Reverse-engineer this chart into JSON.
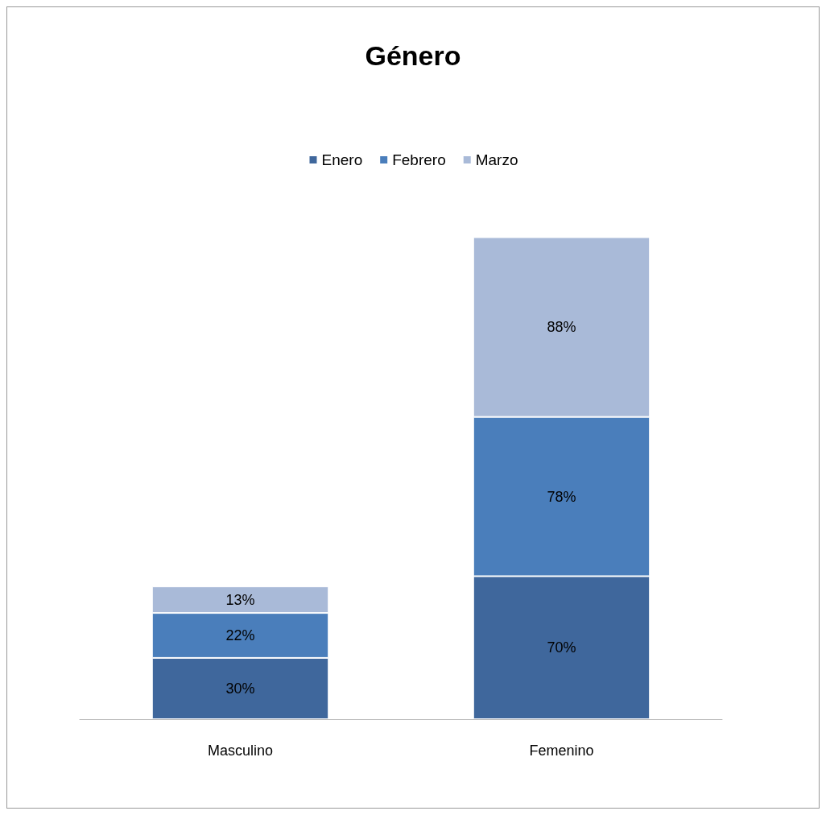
{
  "chart_data": {
    "type": "bar",
    "title": "Género",
    "categories": [
      "Masculino",
      "Femenino"
    ],
    "stacked": true,
    "legend": "top",
    "series": [
      {
        "name": "Enero",
        "color": "#3f679c",
        "values": [
          30,
          70
        ],
        "value_labels": [
          "30%",
          "70%"
        ]
      },
      {
        "name": "Febrero",
        "color": "#4a7ebb",
        "values": [
          22,
          78
        ],
        "value_labels": [
          "22%",
          "78%"
        ]
      },
      {
        "name": "Marzo",
        "color": "#a9bad8",
        "values": [
          13,
          88
        ],
        "value_labels": [
          "13%",
          "88%"
        ]
      }
    ]
  }
}
